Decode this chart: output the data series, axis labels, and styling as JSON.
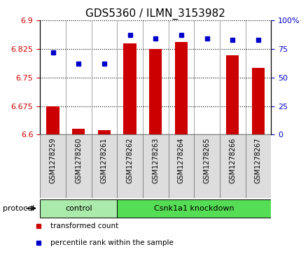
{
  "title": "GDS5360 / ILMN_3153982",
  "samples": [
    "GSM1278259",
    "GSM1278260",
    "GSM1278261",
    "GSM1278262",
    "GSM1278263",
    "GSM1278264",
    "GSM1278265",
    "GSM1278266",
    "GSM1278267"
  ],
  "transformed_count": [
    6.675,
    6.615,
    6.612,
    6.84,
    6.825,
    6.843,
    6.6,
    6.808,
    6.775
  ],
  "percentile_rank": [
    72,
    62,
    62,
    87,
    84,
    87,
    84,
    83,
    83
  ],
  "ylim_left": [
    6.6,
    6.9
  ],
  "ylim_right": [
    0,
    100
  ],
  "yticks_left": [
    6.6,
    6.675,
    6.75,
    6.825,
    6.9
  ],
  "yticks_right": [
    0,
    25,
    50,
    75,
    100
  ],
  "ytick_labels_left": [
    "6.6",
    "6.675",
    "6.75",
    "6.825",
    "6.9"
  ],
  "ytick_labels_right": [
    "0",
    "25",
    "50",
    "75",
    "100%"
  ],
  "bar_color": "#cc0000",
  "dot_color": "#0000cc",
  "protocol_groups": [
    {
      "label": "control",
      "start": 0,
      "end": 2,
      "color": "#aaeaaa"
    },
    {
      "label": "Csnk1a1 knockdown",
      "start": 3,
      "end": 8,
      "color": "#55dd55"
    }
  ],
  "protocol_label": "protocol",
  "legend_items": [
    {
      "label": "transformed count",
      "color": "#cc0000"
    },
    {
      "label": "percentile rank within the sample",
      "color": "#0000cc"
    }
  ],
  "sample_box_color": "#dddddd",
  "title_fontsize": 11,
  "tick_fontsize": 8,
  "label_fontsize": 8
}
